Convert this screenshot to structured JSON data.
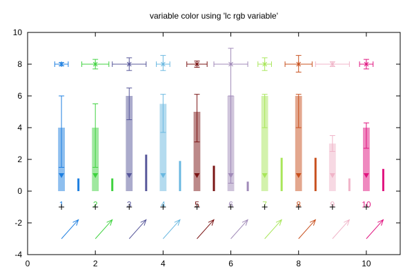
{
  "chart_data": {
    "type": "bar",
    "title": "variable color using 'lc rgb variable'",
    "xlim": [
      0,
      11
    ],
    "ylim": [
      -4,
      10
    ],
    "x_ticks": [
      0,
      2,
      4,
      6,
      8,
      10
    ],
    "y_ticks": [
      -4,
      -2,
      0,
      2,
      4,
      6,
      8,
      10
    ],
    "grid": false,
    "legend": "none",
    "colors": [
      "#1e7fe0",
      "#3fd23f",
      "#57579a",
      "#6ab8e0",
      "#7a1414",
      "#a08ab8",
      "#a8e65a",
      "#c8501e",
      "#f0b4c8",
      "#e0147f"
    ],
    "boxes": {
      "x": [
        1,
        2,
        3,
        4,
        5,
        6,
        7,
        8,
        9,
        10
      ],
      "values": [
        4,
        4,
        6,
        5.5,
        5,
        6,
        6,
        6,
        3,
        4
      ],
      "box_half_width": 0.1
    },
    "box_error_bars": {
      "x": [
        1,
        2,
        3,
        4,
        5,
        6,
        7,
        8,
        9,
        10
      ],
      "center": [
        4,
        4,
        6,
        5.5,
        5,
        6,
        6,
        6,
        3,
        4
      ],
      "low": [
        1.5,
        1.5,
        4.5,
        3.7,
        3.1,
        0.5,
        4,
        4,
        2.5,
        2.7
      ],
      "high": [
        6,
        5.5,
        6.5,
        6.1,
        6.1,
        6,
        6.1,
        6.1,
        3.5,
        4.3
      ]
    },
    "triangle_points": {
      "x": [
        1,
        2,
        3,
        4,
        5,
        6,
        7,
        8,
        9,
        10
      ],
      "y": [
        1,
        1,
        1,
        1,
        1,
        1,
        1,
        1,
        1,
        1
      ]
    },
    "impulses": {
      "x": [
        1.5,
        2.5,
        3.5,
        4.5,
        5.5,
        6.5,
        7.5,
        8.5,
        9.5,
        10.5
      ],
      "y": [
        0.8,
        0.8,
        2.3,
        1.9,
        1.6,
        0.6,
        2.1,
        2.1,
        0.8,
        1.4
      ]
    },
    "xyerror_points": {
      "x": [
        1,
        2,
        3,
        4,
        5,
        6,
        7,
        8,
        9,
        10
      ],
      "y": [
        8,
        8,
        8,
        8,
        8,
        8,
        8,
        8,
        8,
        8
      ],
      "xlow": [
        0.8,
        1.6,
        2.5,
        3.8,
        4.7,
        5.5,
        6.8,
        7.6,
        8.5,
        9.8
      ],
      "xhigh": [
        1.2,
        2.4,
        3.5,
        4.2,
        5.3,
        6.5,
        7.2,
        8.4,
        9.5,
        10.2
      ],
      "ylow": [
        7.9,
        7.7,
        7.6,
        7.6,
        7.8,
        6,
        7.6,
        7.5,
        7.85,
        7.7
      ],
      "yhigh": [
        8.1,
        8.3,
        8.4,
        8.55,
        8.2,
        9,
        8.4,
        8.55,
        8.15,
        8.3
      ]
    },
    "plus_points": {
      "x": [
        1,
        2,
        3,
        4,
        5,
        6,
        7,
        8,
        9,
        10
      ],
      "y": [
        -1,
        -1,
        -1,
        -1,
        -1,
        -1,
        -1,
        -1,
        -1,
        -1
      ]
    },
    "labels": {
      "x": [
        1,
        2,
        3,
        4,
        5,
        6,
        7,
        8,
        9,
        10
      ],
      "y": [
        -0.85,
        -0.85,
        -0.85,
        -0.85,
        -0.85,
        -0.85,
        -0.85,
        -0.85,
        -0.85,
        -0.85
      ],
      "text": [
        "1",
        "2",
        "3",
        "4",
        "5",
        "6",
        "7",
        "8",
        "9",
        "10"
      ]
    },
    "vectors": {
      "x": [
        1,
        2,
        3,
        4,
        5,
        6,
        7,
        8,
        9,
        10
      ],
      "y": [
        -3,
        -3,
        -3,
        -3,
        -3,
        -3,
        -3,
        -3,
        -3,
        -3
      ],
      "dx": [
        0.5,
        0.5,
        0.5,
        0.5,
        0.5,
        0.5,
        0.5,
        0.5,
        0.5,
        0.5
      ],
      "dy": [
        1.2,
        1.2,
        1.2,
        1.2,
        1.2,
        1.2,
        1.2,
        1.2,
        1.2,
        1.2
      ]
    }
  }
}
